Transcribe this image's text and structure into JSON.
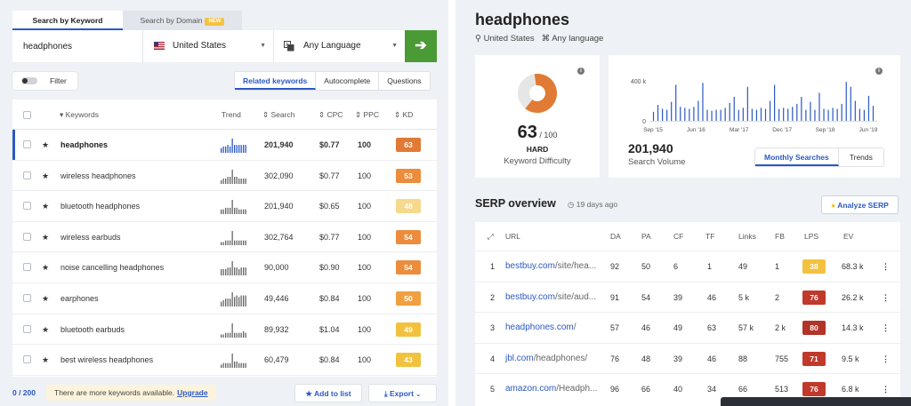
{
  "tabs": {
    "keyword": "Search by Keyword",
    "domain": "Search by Domain",
    "new_badge": "NEW"
  },
  "search": {
    "value": "headphones",
    "country": "United States",
    "language": "Any Language",
    "go_icon": "arrow-right-icon"
  },
  "filter": {
    "label": "Filter"
  },
  "segtabs": [
    "Related keywords",
    "Autocomplete",
    "Questions"
  ],
  "table": {
    "headers": {
      "keywords": "Keywords",
      "trend": "Trend",
      "search": "Search",
      "cpc": "CPC",
      "ppc": "PPC",
      "kd": "KD"
    },
    "rows": [
      {
        "keyword": "headphones",
        "search": "201,940",
        "cpc": "$0.77",
        "ppc": "100",
        "kd": "63",
        "color": "#e07a35",
        "trend": [
          3,
          4,
          4,
          5,
          4,
          9,
          5,
          5,
          5,
          5,
          5,
          5
        ],
        "selected": true
      },
      {
        "keyword": "wireless headphones",
        "search": "302,090",
        "cpc": "$0.77",
        "ppc": "100",
        "kd": "53",
        "color": "#ec8c3d",
        "trend": [
          2,
          3,
          3,
          4,
          4,
          8,
          4,
          4,
          3,
          3,
          3,
          3
        ]
      },
      {
        "keyword": "bluetooth headphones",
        "search": "201,940",
        "cpc": "$0.65",
        "ppc": "100",
        "kd": "48",
        "color": "#f7d98c",
        "trend": [
          3,
          3,
          4,
          4,
          4,
          9,
          4,
          4,
          3,
          3,
          3,
          3
        ]
      },
      {
        "keyword": "wireless earbuds",
        "search": "302,764",
        "cpc": "$0.77",
        "ppc": "100",
        "kd": "54",
        "color": "#ec8c3d",
        "trend": [
          2,
          2,
          3,
          3,
          3,
          9,
          3,
          3,
          3,
          3,
          3,
          3
        ]
      },
      {
        "keyword": "noise cancelling headphones",
        "search": "90,000",
        "cpc": "$0.90",
        "ppc": "100",
        "kd": "54",
        "color": "#ec8c3d",
        "trend": [
          4,
          4,
          4,
          5,
          5,
          9,
          5,
          5,
          4,
          5,
          5,
          5
        ]
      },
      {
        "keyword": "earphones",
        "search": "49,446",
        "cpc": "$0.84",
        "ppc": "100",
        "kd": "50",
        "color": "#f0a041",
        "trend": [
          3,
          4,
          5,
          5,
          5,
          9,
          6,
          7,
          6,
          7,
          7,
          7
        ]
      },
      {
        "keyword": "bluetooth earbuds",
        "search": "89,932",
        "cpc": "$1.04",
        "ppc": "100",
        "kd": "49",
        "color": "#f2c23f",
        "trend": [
          2,
          2,
          3,
          3,
          3,
          9,
          3,
          3,
          3,
          3,
          4,
          3
        ]
      },
      {
        "keyword": "best wireless headphones",
        "search": "60,479",
        "cpc": "$0.84",
        "ppc": "100",
        "kd": "43",
        "color": "#f2c23f",
        "trend": [
          2,
          3,
          3,
          3,
          3,
          9,
          4,
          4,
          3,
          3,
          3,
          3
        ]
      }
    ]
  },
  "footer": {
    "count": "0 / 200",
    "note": "There are more keywords available.",
    "upgrade": "Upgrade",
    "add_to_list": "Add to list",
    "export": "Export"
  },
  "overview": {
    "keyword": "headphones",
    "location": "United States",
    "language": "Any language",
    "kd_value": "63",
    "kd_max": "/ 100",
    "kd_level": "HARD",
    "kd_label": "Keyword Difficulty",
    "kd_color": "#e07a35",
    "volume_value": "201,940",
    "volume_label": "Search Volume",
    "volume_tabs": [
      "Monthly Searches",
      "Trends"
    ]
  },
  "chart_data": {
    "type": "bar",
    "ylim": [
      0,
      400000
    ],
    "yticks": [
      "400 k",
      "0"
    ],
    "xticks": [
      "Sep '15",
      "Jun '16",
      "Mar '17",
      "Dec '17",
      "Sep '18",
      "Jun '19"
    ],
    "values": [
      90000,
      160000,
      120000,
      110000,
      190000,
      360000,
      140000,
      130000,
      120000,
      140000,
      200000,
      380000,
      110000,
      100000,
      110000,
      110000,
      130000,
      180000,
      240000,
      110000,
      130000,
      340000,
      120000,
      110000,
      130000,
      120000,
      200000,
      360000,
      120000,
      130000,
      120000,
      140000,
      170000,
      240000,
      110000,
      190000,
      110000,
      280000,
      120000,
      110000,
      130000,
      120000,
      170000,
      390000,
      340000,
      200000,
      120000,
      110000,
      250000,
      150000
    ]
  },
  "serp": {
    "title": "SERP overview",
    "ago": "19 days ago",
    "analyze": "Analyze SERP",
    "headers": {
      "url": "URL",
      "da": "DA",
      "pa": "PA",
      "cf": "CF",
      "tf": "TF",
      "links": "Links",
      "fb": "FB",
      "lps": "LPS",
      "ev": "EV"
    },
    "rows": [
      {
        "n": "1",
        "domain": "bestbuy.com",
        "path": "/site/hea...",
        "da": "92",
        "pa": "50",
        "cf": "6",
        "tf": "1",
        "links": "49",
        "fb": "1",
        "lps": "38",
        "color": "#f2c23f",
        "ev": "68.3 k"
      },
      {
        "n": "2",
        "domain": "bestbuy.com",
        "path": "/site/aud...",
        "da": "91",
        "pa": "54",
        "cf": "39",
        "tf": "46",
        "links": "5 k",
        "fb": "2",
        "lps": "76",
        "color": "#c0392b",
        "ev": "26.2 k"
      },
      {
        "n": "3",
        "domain": "headphones.com",
        "path": "/",
        "da": "57",
        "pa": "46",
        "cf": "49",
        "tf": "63",
        "links": "57 k",
        "fb": "2 k",
        "lps": "80",
        "color": "#b23328",
        "ev": "14.3 k"
      },
      {
        "n": "4",
        "domain": "jbl.com",
        "path": "/headphones/",
        "da": "76",
        "pa": "48",
        "cf": "39",
        "tf": "46",
        "links": "88",
        "fb": "755",
        "lps": "71",
        "color": "#c0392b",
        "ev": "9.5 k"
      },
      {
        "n": "5",
        "domain": "amazon.com",
        "path": "/Headph...",
        "da": "96",
        "pa": "66",
        "cf": "40",
        "tf": "34",
        "links": "66",
        "fb": "513",
        "lps": "76",
        "color": "#c0392b",
        "ev": "6.8 k"
      }
    ]
  }
}
